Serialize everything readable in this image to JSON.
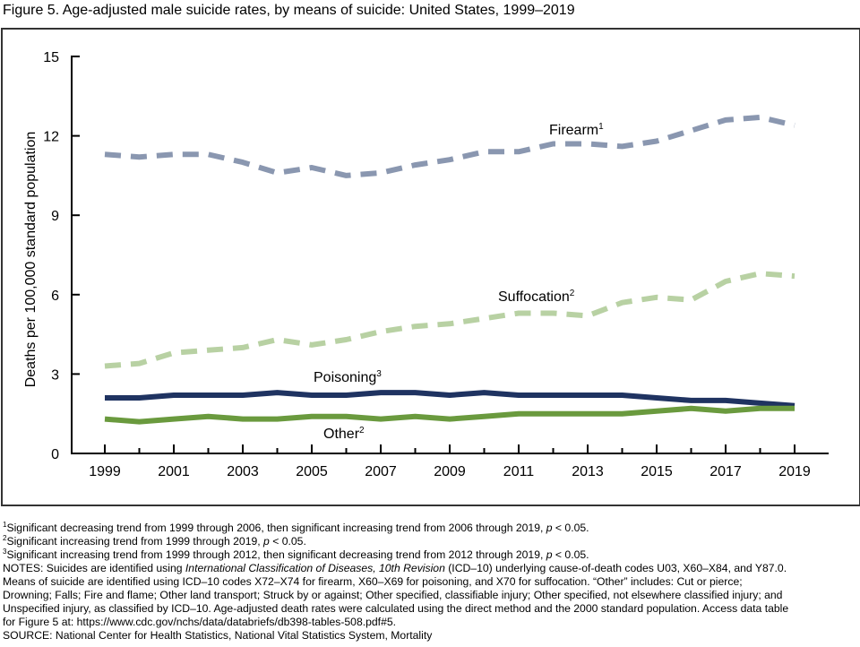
{
  "title": "Figure 5. Age-adjusted male suicide rates, by means of suicide: United States, 1999–2019",
  "chart_data": {
    "type": "line",
    "title": "Figure 5. Age-adjusted male suicide rates, by means of suicide: United States, 1999–2019",
    "xlabel": "",
    "ylabel": "Deaths per 100,000 standard population",
    "ylim": [
      0,
      15
    ],
    "yticks": [
      "0",
      "3",
      "6",
      "9",
      "12",
      "15"
    ],
    "xticks": [
      "1999",
      "2001",
      "2003",
      "2005",
      "2007",
      "2009",
      "2011",
      "2013",
      "2015",
      "2017",
      "2019"
    ],
    "x": [
      1999,
      2000,
      2001,
      2002,
      2003,
      2004,
      2005,
      2006,
      2007,
      2008,
      2009,
      2010,
      2011,
      2012,
      2013,
      2014,
      2015,
      2016,
      2017,
      2018,
      2019
    ],
    "grid": false,
    "series": [
      {
        "name": "Firearm",
        "sup": "1",
        "color": "#8a97b0",
        "dash": true,
        "values": [
          11.3,
          11.2,
          11.3,
          11.3,
          11.0,
          10.6,
          10.8,
          10.5,
          10.6,
          10.9,
          11.1,
          11.4,
          11.4,
          11.7,
          11.7,
          11.6,
          11.8,
          12.2,
          12.6,
          12.7,
          12.4
        ]
      },
      {
        "name": "Suffocation",
        "sup": "2",
        "color": "#b8d1a3",
        "dash": true,
        "values": [
          3.3,
          3.4,
          3.8,
          3.9,
          4.0,
          4.3,
          4.1,
          4.3,
          4.6,
          4.8,
          4.9,
          5.1,
          5.3,
          5.3,
          5.2,
          5.7,
          5.9,
          5.8,
          6.5,
          6.8,
          6.7
        ]
      },
      {
        "name": "Poisoning",
        "sup": "3",
        "color": "#1f3361",
        "dash": false,
        "values": [
          2.1,
          2.1,
          2.2,
          2.2,
          2.2,
          2.3,
          2.2,
          2.2,
          2.3,
          2.3,
          2.2,
          2.3,
          2.2,
          2.2,
          2.2,
          2.2,
          2.1,
          2.0,
          2.0,
          1.9,
          1.8
        ]
      },
      {
        "name": "Other",
        "sup": "2",
        "color": "#6a9a3e",
        "dash": false,
        "values": [
          1.3,
          1.2,
          1.3,
          1.4,
          1.3,
          1.3,
          1.4,
          1.4,
          1.3,
          1.4,
          1.3,
          1.4,
          1.5,
          1.5,
          1.5,
          1.5,
          1.6,
          1.7,
          1.6,
          1.7,
          1.7
        ]
      }
    ]
  },
  "footnotes": [
    {
      "sup": "1",
      "text": "Significant decreasing trend from 1999 through 2006, then significant increasing trend from 2006 through 2019, ",
      "p": "p",
      "tail": " < 0.05."
    },
    {
      "sup": "2",
      "text": "Significant increasing trend from 1999 through 2019, ",
      "p": "p",
      "tail": " < 0.05."
    },
    {
      "sup": "3",
      "text": "Significant increasing trend from 1999 through 2012, then significant decreasing trend from 2012 through 2019, ",
      "p": "p",
      "tail": " < 0.05."
    }
  ],
  "notes": {
    "l1a": "NOTES: Suicides are identified using ",
    "l1i": "International Classification of Diseases, 10th Revision",
    "l1b": " (ICD–10) underlying cause-of-death codes U03, X60–X84, and Y87.0.",
    "l2": "Means of suicide are identified using ICD–10 codes X72–X74 for firearm, X60–X69 for poisoning, and X70 for suffocation. “Other” includes: Cut or pierce;",
    "l3": "Drowning; Falls; Fire and flame; Other land transport; Struck by or against; Other specified, classifiable injury; Other specified, not elsewhere classified injury; and",
    "l4": "Unspecified injury, as classified by ICD–10. Age-adjusted death rates were calculated using the direct method and the 2000 standard population. Access data table",
    "l5": "for Figure 5 at: https://www.cdc.gov/nchs/data/databriefs/db398-tables-508.pdf#5.",
    "source": "SOURCE: National Center for Health Statistics, National Vital Statistics System, Mortality"
  }
}
